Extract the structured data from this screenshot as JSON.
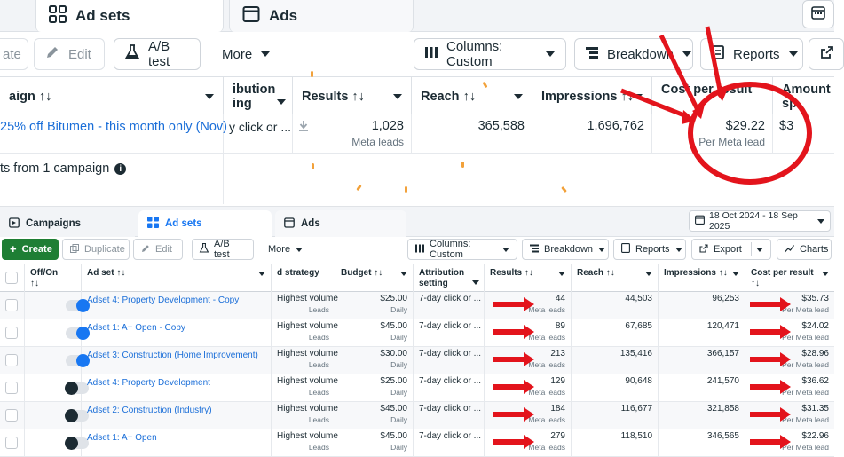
{
  "top": {
    "tabs": {
      "adsets": "Ad sets",
      "ads": "Ads"
    },
    "toolbar": {
      "create": "ate",
      "edit": "Edit",
      "ab_test": "A/B test",
      "more": "More",
      "columns": "Columns: Custom",
      "breakdown": "Breakdown",
      "reports": "Reports"
    },
    "headers": {
      "campaign": "aign",
      "attribution_1": "ibution",
      "attribution_2": "ing",
      "results": "Results",
      "reach": "Reach",
      "impressions": "Impressions",
      "cost": "Cost per result",
      "amount": "Amount sp"
    },
    "row": {
      "campaign": "25% off Bitumen - this month only (Nov)",
      "attribution": "y click or ...",
      "results": "1,028",
      "results_sub": "Meta leads",
      "reach": "365,588",
      "impressions": "1,696,762",
      "cost": "$29.22",
      "cost_sub": "Per Meta lead",
      "amount": "$3"
    },
    "summary": "ts from 1 campaign",
    "accent": "#1a6ed8",
    "annotation_color": "#e3141c"
  },
  "bottom": {
    "tabs": {
      "campaigns": "Campaigns",
      "adsets": "Ad sets",
      "ads": "Ads"
    },
    "date_range": "18 Oct 2024 - 18 Sep 2025",
    "toolbar": {
      "create": "Create",
      "duplicate": "Duplicate",
      "edit": "Edit",
      "ab_test": "A/B test",
      "more": "More",
      "columns": "Columns: Custom",
      "breakdown": "Breakdown",
      "reports": "Reports",
      "export": "Export",
      "charts": "Charts"
    },
    "headers": {
      "offon": "Off/On",
      "adset": "Ad set",
      "strategy": "d strategy",
      "budget": "Budget",
      "attribution": "Attribution setting",
      "results": "Results",
      "reach": "Reach",
      "impressions": "Impressions",
      "cost": "Cost per result"
    },
    "rows": [
      {
        "toggle": "on",
        "name": "Adset 4: Property Development - Copy",
        "strategy": "Highest volume",
        "strategy_sub": "Leads",
        "budget": "$25.00",
        "budget_sub": "Daily",
        "attribution": "7-day click or ...",
        "results": "44",
        "results_sub": "Meta leads",
        "reach": "44,503",
        "impressions": "96,253",
        "cost": "$35.73",
        "cost_sub": "Per Meta lead"
      },
      {
        "toggle": "on",
        "name": "Adset 1: A+ Open - Copy",
        "strategy": "Highest volume",
        "strategy_sub": "Leads",
        "budget": "$45.00",
        "budget_sub": "Daily",
        "attribution": "7-day click or ...",
        "results": "89",
        "results_sub": "Meta leads",
        "reach": "67,685",
        "impressions": "120,471",
        "cost": "$24.02",
        "cost_sub": "Per Meta lead"
      },
      {
        "toggle": "on",
        "name": "Adset 3: Construction (Home Improvement)",
        "strategy": "Highest volume",
        "strategy_sub": "Leads",
        "budget": "$30.00",
        "budget_sub": "Daily",
        "attribution": "7-day click or ...",
        "results": "213",
        "results_sub": "Meta leads",
        "reach": "135,416",
        "impressions": "366,157",
        "cost": "$28.96",
        "cost_sub": "Per Meta lead"
      },
      {
        "toggle": "off",
        "name": "Adset 4: Property Development",
        "strategy": "Highest volume",
        "strategy_sub": "Leads",
        "budget": "$25.00",
        "budget_sub": "Daily",
        "attribution": "7-day click or ...",
        "results": "129",
        "results_sub": "Meta leads",
        "reach": "90,648",
        "impressions": "241,570",
        "cost": "$36.62",
        "cost_sub": "Per Meta lead"
      },
      {
        "toggle": "off",
        "name": "Adset 2: Construction (Industry)",
        "strategy": "Highest volume",
        "strategy_sub": "Leads",
        "budget": "$45.00",
        "budget_sub": "Daily",
        "attribution": "7-day click or ...",
        "results": "184",
        "results_sub": "Meta leads",
        "reach": "116,677",
        "impressions": "321,858",
        "cost": "$31.35",
        "cost_sub": "Per Meta lead"
      },
      {
        "toggle": "off",
        "name": "Adset 1: A+ Open",
        "strategy": "Highest volume",
        "strategy_sub": "Leads",
        "budget": "$45.00",
        "budget_sub": "Daily",
        "attribution": "7-day click or ...",
        "results": "279",
        "results_sub": "Meta leads",
        "reach": "118,510",
        "impressions": "346,565",
        "cost": "$22.96",
        "cost_sub": "Per Meta lead"
      }
    ],
    "create_color": "#1e7e34",
    "accent": "#1877f2"
  }
}
